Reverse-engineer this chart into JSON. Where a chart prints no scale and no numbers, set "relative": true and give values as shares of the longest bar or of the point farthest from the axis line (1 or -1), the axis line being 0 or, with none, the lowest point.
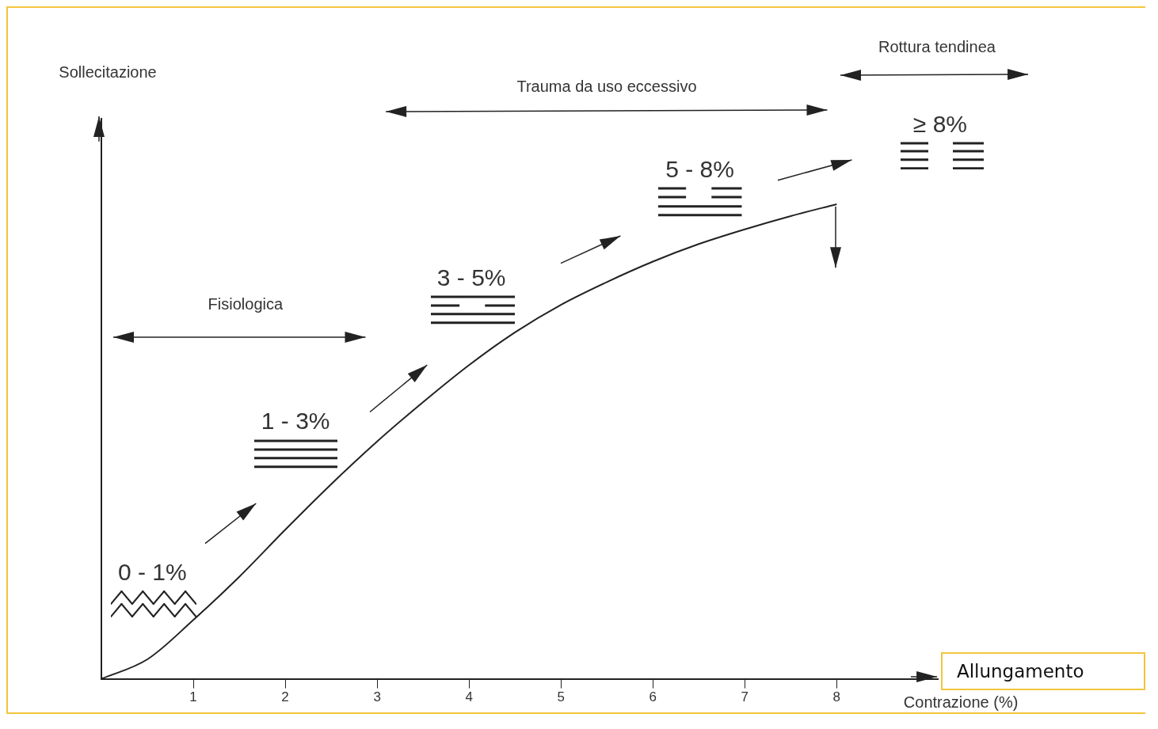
{
  "chart_data": {
    "type": "line",
    "xlabel": "Contrazione (%)",
    "relative": true,
    "x": [
      0,
      0.5,
      1,
      1.5,
      2,
      2.5,
      3,
      3.5,
      4,
      4.5,
      5,
      5.5,
      6,
      6.5,
      7,
      7.5,
      8
    ],
    "series": [
      {
        "color": "#222222",
        "values": [
          0,
          0.041,
          0.124,
          0.215,
          0.314,
          0.41,
          0.5,
          0.583,
          0.661,
          0.73,
          0.788,
          0.836,
          0.879,
          0.916,
          0.947,
          0.975,
          1
        ]
      }
    ],
    "xlim": [
      0,
      9.1
    ],
    "xticks": [
      1,
      2,
      3,
      4,
      5,
      6,
      7,
      8
    ],
    "annotations": [
      "Fisiologica",
      "Trauma da uso eccessivo",
      "Rottura tendinea",
      "0 - 1%",
      "1 - 3%",
      "3 - 5%",
      "5 - 8%",
      "≥ 8%",
      "Sollecitazione",
      "Allungamento"
    ]
  }
}
